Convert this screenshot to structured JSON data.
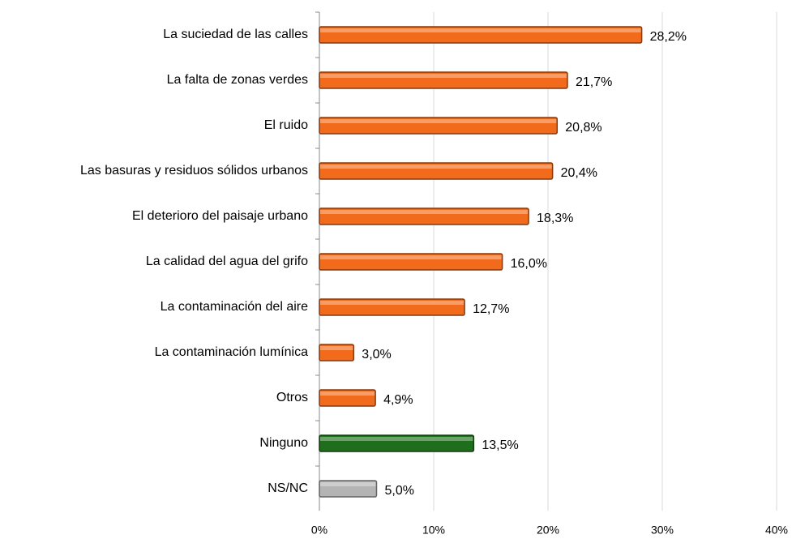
{
  "chart_data": {
    "type": "bar",
    "orientation": "horizontal",
    "categories": [
      "La suciedad de las calles",
      "La falta de zonas verdes",
      "El ruido",
      "Las basuras y residuos sólidos urbanos",
      "El deterioro del paisaje urbano",
      "La calidad del agua del grifo",
      "La contaminación del aire",
      "La contaminación lumínica",
      "Otros",
      "Ninguno",
      "NS/NC"
    ],
    "values": [
      28.2,
      21.7,
      20.8,
      20.4,
      18.3,
      16.0,
      12.7,
      3.0,
      4.9,
      13.5,
      5.0
    ],
    "value_labels": [
      "28,2%",
      "21,7%",
      "20,8%",
      "20,4%",
      "18,3%",
      "16,0%",
      "12,7%",
      "3,0%",
      "4,9%",
      "13,5%",
      "5,0%"
    ],
    "colors": [
      "#f26a1b",
      "#f26a1b",
      "#f26a1b",
      "#f26a1b",
      "#f26a1b",
      "#f26a1b",
      "#f26a1b",
      "#f26a1b",
      "#f26a1b",
      "#1f6e1c",
      "#b4b4b4"
    ],
    "xlim": [
      0,
      40
    ],
    "xticks": [
      {
        "value": 0,
        "label": "0%"
      },
      {
        "value": 10,
        "label": "10%"
      },
      {
        "value": 20,
        "label": "20%"
      },
      {
        "value": 30,
        "label": "30%"
      },
      {
        "value": 40,
        "label": "40%"
      }
    ],
    "grid": true
  }
}
